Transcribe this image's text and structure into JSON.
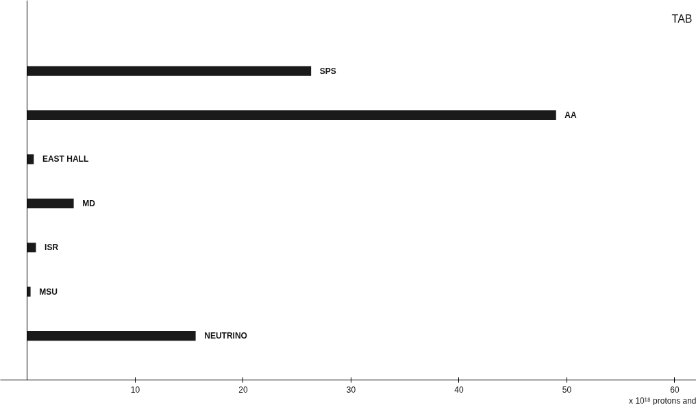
{
  "chart_data": {
    "type": "bar",
    "orientation": "horizontal",
    "title": "TAB",
    "xlabel": "x 10¹⁸ protons and",
    "categories": [
      "SPS",
      "AA",
      "EAST HALL",
      "MD",
      "ISR",
      "MSU",
      "NEUTRINO"
    ],
    "values": [
      26.3,
      49,
      0.6,
      4.3,
      0.8,
      0.3,
      15.6
    ],
    "color": "#1a1a1a",
    "xlim": [
      -2.5,
      62
    ],
    "xticks": [
      10,
      20,
      30,
      40,
      50,
      60
    ],
    "tick_labels": "x",
    "grid": false
  }
}
